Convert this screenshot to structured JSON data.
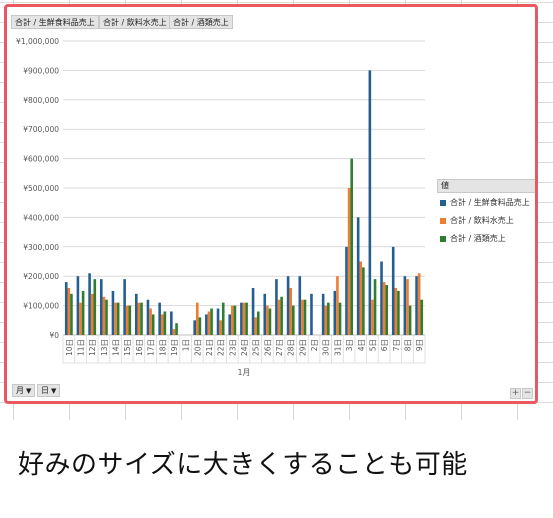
{
  "field_buttons": [
    "合計 / 生鮮食料品売上",
    "合計 / 飲料水売上",
    "合計 / 酒類売上"
  ],
  "axis_buttons": {
    "month": "月",
    "day": "日"
  },
  "legend": {
    "title": "値",
    "items": [
      {
        "label": "合計 / 生鮮食料品売上",
        "color": "#255e91"
      },
      {
        "label": "合計 / 飲料水売上",
        "color": "#ed7d31"
      },
      {
        "label": "合計 / 酒類売上",
        "color": "#2e7d32"
      }
    ]
  },
  "zoom": {
    "plus": "+",
    "minus": "−"
  },
  "caption": "好みのサイズに大きくすることも可能",
  "chart_data": {
    "type": "bar",
    "ylim": [
      0,
      1000000
    ],
    "y_ticks": [
      "¥0",
      "¥100,000",
      "¥200,000",
      "¥300,000",
      "¥400,000",
      "¥500,000",
      "¥600,000",
      "¥700,000",
      "¥800,000",
      "¥900,000",
      "¥1,000,000"
    ],
    "grid": true,
    "legend_position": "right",
    "group_labels": [
      "1月"
    ],
    "categories": [
      "10日",
      "11日",
      "12日",
      "13日",
      "14日",
      "15日",
      "16日",
      "17日",
      "18日",
      "19日",
      "1日",
      "20日",
      "21日",
      "22日",
      "23日",
      "24日",
      "25日",
      "26日",
      "27日",
      "28日",
      "29日",
      "2日",
      "30日",
      "31日",
      "3日",
      "4日",
      "5日",
      "6日",
      "7日",
      "8日",
      "9日"
    ],
    "series": [
      {
        "name": "合計 / 生鮮食料品売上",
        "color": "#255e91",
        "values": [
          180000,
          200000,
          210000,
          190000,
          150000,
          190000,
          140000,
          120000,
          110000,
          80000,
          0,
          50000,
          70000,
          90000,
          70000,
          110000,
          160000,
          140000,
          190000,
          200000,
          200000,
          140000,
          140000,
          150000,
          300000,
          400000,
          900000,
          250000,
          300000,
          200000,
          200000
        ]
      },
      {
        "name": "合計 / 飲料水売上",
        "color": "#ed7d31",
        "values": [
          160000,
          110000,
          140000,
          130000,
          110000,
          100000,
          110000,
          90000,
          70000,
          20000,
          0,
          110000,
          80000,
          50000,
          100000,
          110000,
          60000,
          100000,
          120000,
          160000,
          120000,
          0,
          100000,
          200000,
          500000,
          250000,
          120000,
          180000,
          160000,
          190000,
          210000
        ]
      },
      {
        "name": "合計 / 酒類売上",
        "color": "#2e7d32",
        "values": [
          140000,
          150000,
          190000,
          120000,
          110000,
          100000,
          110000,
          70000,
          80000,
          40000,
          0,
          60000,
          90000,
          110000,
          100000,
          110000,
          80000,
          90000,
          130000,
          100000,
          120000,
          0,
          110000,
          110000,
          600000,
          230000,
          190000,
          170000,
          150000,
          100000,
          120000
        ]
      }
    ]
  }
}
